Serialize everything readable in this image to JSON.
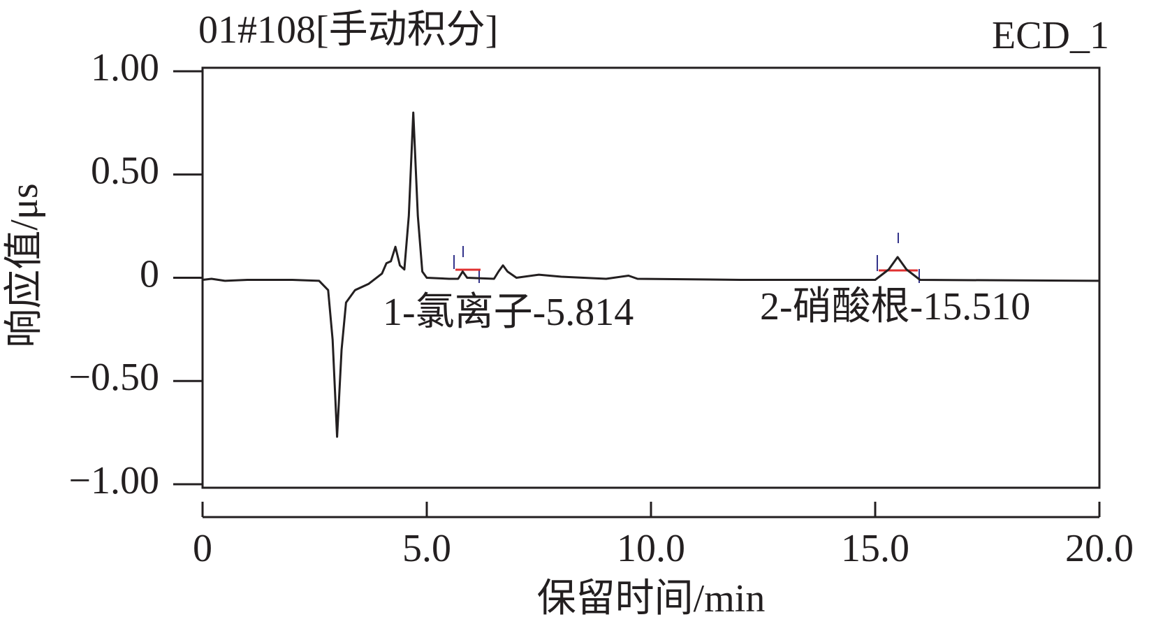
{
  "chart_data": {
    "type": "line",
    "title": "01#108[手动积分]",
    "subtitle": "ECD_1",
    "x_label": "保留时间/min",
    "y_label": "响应值/μs",
    "annotations": [
      "1-氯离子-5.814",
      "2-硝酸根-15.510"
    ],
    "x": [
      0,
      0.2,
      0.5,
      1,
      2,
      2.6,
      2.8,
      2.9,
      3.0,
      3.1,
      3.2,
      3.4,
      3.7,
      4.0,
      4.1,
      4.2,
      4.3,
      4.4,
      4.5,
      4.6,
      4.7,
      4.8,
      4.9,
      5.0,
      5.5,
      5.7,
      5.8,
      5.9,
      6.5,
      6.6,
      6.7,
      6.8,
      7.0,
      7.5,
      8.0,
      9.0,
      9.5,
      9.7,
      12,
      15.0,
      15.3,
      15.5,
      15.7,
      16.0,
      20
    ],
    "series": [
      {
        "color": "#231f20",
        "values": [
          -0.01,
          -0.005,
          -0.015,
          -0.01,
          -0.01,
          -0.015,
          -0.06,
          -0.3,
          -0.77,
          -0.35,
          -0.12,
          -0.06,
          -0.03,
          0.02,
          0.07,
          0.08,
          0.15,
          0.06,
          0.04,
          0.3,
          0.8,
          0.3,
          0.03,
          0.0,
          -0.005,
          -0.005,
          0.03,
          0.0,
          -0.005,
          0.03,
          0.06,
          0.03,
          0.0,
          0.015,
          0.005,
          -0.005,
          0.01,
          -0.005,
          -0.01,
          -0.01,
          0.04,
          0.1,
          0.04,
          -0.01,
          -0.015
        ]
      }
    ],
    "xlim": [
      0,
      20
    ],
    "xticks": [
      0,
      {
        "value": 5,
        "label": "5.0"
      },
      {
        "value": 10,
        "label": "10.0"
      },
      {
        "value": 15,
        "label": "15.0"
      },
      {
        "value": 20,
        "label": "20.0"
      }
    ],
    "ylim": [
      -1,
      1
    ],
    "yticks": [
      {
        "value": 1,
        "label": "1.00"
      },
      {
        "value": 0.5,
        "label": "0.50"
      },
      0,
      {
        "value": -0.5,
        "label": "−0.50"
      },
      {
        "value": -1,
        "label": "−1.00"
      }
    ],
    "grid": false
  }
}
